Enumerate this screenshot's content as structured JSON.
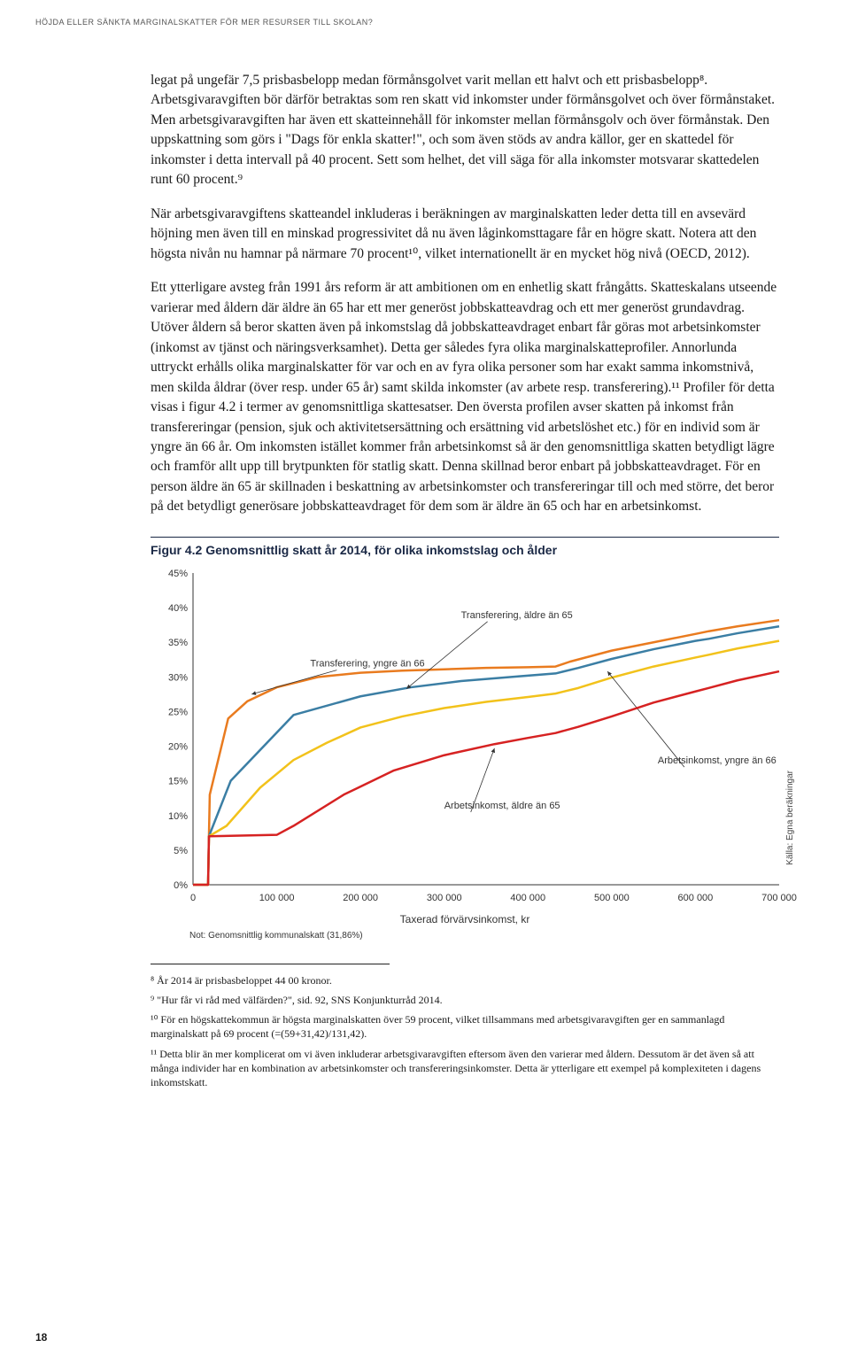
{
  "header": "HÖJDA ELLER SÄNKTA MARGINALSKATTER FÖR MER RESURSER TILL SKOLAN?",
  "p1": "legat på ungefär 7,5 prisbasbelopp medan förmånsgolvet varit mellan ett halvt och ett prisbasbelopp⁸. Arbetsgivaravgiften bör därför betraktas som ren skatt vid inkomster under förmånsgolvet och över förmånstaket. Men arbetsgivaravgiften har även ett skatteinnehåll för inkomster mellan förmånsgolv och över förmånstak. Den uppskattning som görs i \"Dags för enkla skatter!\", och som även stöds av andra källor, ger en skattedel för inkomster i detta intervall på 40 procent. Sett som helhet, det vill säga för alla inkomster motsvarar skattedelen runt 60 procent.⁹",
  "p2": "När arbetsgivaravgiftens skatteandel inkluderas i beräkningen av marginalskatten leder detta till en avsevärd höjning men även till en minskad progressivitet då nu även låginkomsttagare får en högre skatt. Notera att den högsta nivån nu hamnar på närmare 70 procent¹⁰, vilket internationellt är en mycket hög nivå (OECD, 2012).",
  "p3": "Ett ytterligare avsteg från 1991 års reform är att ambitionen om en enhetlig skatt frångåtts. Skatteskalans utseende varierar med åldern där äldre än 65 har ett mer generöst jobbskatteavdrag och ett mer generöst grundavdrag. Utöver åldern så beror skatten även på inkomstslag då jobbskatteavdraget enbart får göras mot arbetsinkomster (inkomst av tjänst och näringsverksamhet). Detta ger således fyra olika marginalskatteprofiler. Annorlunda uttryckt erhålls olika marginalskatter för var och en av fyra olika personer som har exakt samma inkomstnivå, men skilda åldrar (över resp. under 65 år) samt skilda inkomster (av arbete resp. transferering).¹¹ Profiler för detta visas i figur 4.2 i termer av genomsnittliga skattesatser. Den översta profilen avser skatten på inkomst från transfereringar (pension, sjuk och aktivitetsersättning och ersättning vid arbetslöshet etc.) för en individ som är yngre än 66 år. Om inkomsten istället kommer från arbetsinkomst så är den genomsnittliga skatten betydligt lägre och framför allt upp till brytpunkten för statlig skatt. Denna skillnad beror enbart på jobbskatteavdraget. För en person äldre än 65 är skillnaden i beskattning av arbetsinkomster och transfereringar till och med större, det beror på det betydligt generösare jobbskatteavdraget för dem som är äldre än 65 och har en arbetsinkomst.",
  "figTitle": "Figur 4.2 Genomsnittlig skatt år 2014, för olika inkomstslag och ålder",
  "chart": {
    "type": "line",
    "xmin": 0,
    "xmax": 700000,
    "ymin": 0,
    "ymax": 45,
    "ytick_step": 5,
    "yticks": [
      "0%",
      "5%",
      "10%",
      "15%",
      "20%",
      "25%",
      "30%",
      "35%",
      "40%",
      "45%"
    ],
    "xticks": [
      0,
      100000,
      200000,
      300000,
      400000,
      500000,
      600000,
      700000
    ],
    "xticklabels": [
      "0",
      "100 000",
      "200 000",
      "300 000",
      "400 000",
      "500 000",
      "600 000",
      "700 000"
    ],
    "xlabel": "Taxerad förvärvsinkomst, kr",
    "source": "Källa: Egna beräkningar",
    "note": "Not: Genomsnittlig kommunalskatt (31,86%)",
    "line_width": 2.5,
    "background_color": "#ffffff",
    "axis_color": "#333333",
    "series": [
      {
        "name": "Transferering, yngre än 66",
        "color": "#e97b1f",
        "label_xy": [
          140000,
          31.5
        ],
        "arrow_to": [
          70000,
          27.5
        ],
        "data": [
          [
            0,
            0
          ],
          [
            18000,
            0
          ],
          [
            19000,
            7
          ],
          [
            20000,
            13
          ],
          [
            42000,
            24
          ],
          [
            65000,
            26.5
          ],
          [
            100000,
            28.5
          ],
          [
            150000,
            30
          ],
          [
            200000,
            30.6
          ],
          [
            250000,
            30.9
          ],
          [
            300000,
            31.1
          ],
          [
            350000,
            31.3
          ],
          [
            400000,
            31.4
          ],
          [
            433000,
            31.5
          ],
          [
            450000,
            32.2
          ],
          [
            500000,
            33.8
          ],
          [
            550000,
            35
          ],
          [
            600000,
            36.2
          ],
          [
            616000,
            36.6
          ],
          [
            650000,
            37.3
          ],
          [
            700000,
            38.2
          ]
        ]
      },
      {
        "name": "Transferering, äldre än 65",
        "color": "#3b7ea4",
        "label_xy": [
          320000,
          38.5
        ],
        "arrow_to": [
          255000,
          28.3
        ],
        "data": [
          [
            0,
            0
          ],
          [
            18000,
            0
          ],
          [
            19000,
            7
          ],
          [
            45000,
            15
          ],
          [
            120000,
            24.5
          ],
          [
            200000,
            27.2
          ],
          [
            260000,
            28.5
          ],
          [
            320000,
            29.4
          ],
          [
            380000,
            30
          ],
          [
            433000,
            30.5
          ],
          [
            460000,
            31.3
          ],
          [
            500000,
            32.6
          ],
          [
            550000,
            34
          ],
          [
            600000,
            35.2
          ],
          [
            616000,
            35.5
          ],
          [
            650000,
            36.3
          ],
          [
            700000,
            37.3
          ]
        ]
      },
      {
        "name": "Arbetsinkomst, yngre än 66",
        "color": "#f2c21b",
        "label_xy": [
          555000,
          17.5
        ],
        "arrow_to": [
          495000,
          30.8
        ],
        "data": [
          [
            0,
            0
          ],
          [
            18000,
            0
          ],
          [
            19000,
            7
          ],
          [
            40000,
            8.5
          ],
          [
            80000,
            14
          ],
          [
            120000,
            18
          ],
          [
            160000,
            20.5
          ],
          [
            200000,
            22.7
          ],
          [
            250000,
            24.3
          ],
          [
            300000,
            25.5
          ],
          [
            350000,
            26.4
          ],
          [
            400000,
            27.1
          ],
          [
            433000,
            27.6
          ],
          [
            460000,
            28.4
          ],
          [
            500000,
            29.9
          ],
          [
            550000,
            31.5
          ],
          [
            600000,
            32.8
          ],
          [
            616000,
            33.2
          ],
          [
            650000,
            34.1
          ],
          [
            700000,
            35.2
          ]
        ]
      },
      {
        "name": "Arbetsinkomst, äldre än 65",
        "color": "#d62222",
        "label_xy": [
          300000,
          11
        ],
        "arrow_to": [
          360000,
          19.7
        ],
        "data": [
          [
            0,
            0
          ],
          [
            18000,
            0
          ],
          [
            19000,
            7
          ],
          [
            100000,
            7.2
          ],
          [
            120000,
            8.5
          ],
          [
            180000,
            13
          ],
          [
            240000,
            16.5
          ],
          [
            300000,
            18.7
          ],
          [
            360000,
            20.3
          ],
          [
            400000,
            21.2
          ],
          [
            433000,
            21.9
          ],
          [
            460000,
            22.8
          ],
          [
            500000,
            24.3
          ],
          [
            550000,
            26.3
          ],
          [
            600000,
            27.9
          ],
          [
            616000,
            28.4
          ],
          [
            650000,
            29.5
          ],
          [
            700000,
            30.8
          ]
        ]
      }
    ]
  },
  "fn8": "⁸ År 2014 är prisbasbeloppet 44 00 kronor.",
  "fn9": "⁹ \"Hur får vi råd med välfärden?\", sid. 92, SNS Konjunkturråd 2014.",
  "fn10": "¹⁰ För en högskattekommun är högsta marginalskatten över 59 procent, vilket tillsammans med arbetsgivaravgiften ger en sammanlagd marginalskatt på 69 procent (=(59+31,42)/131,42).",
  "fn11": "¹¹ Detta blir än mer komplicerat om vi även inkluderar arbetsgivaravgiften eftersom även den varierar med åldern. Dessutom är det även så att många individer har en kombination av arbetsinkomster och transfereringsinkomster. Detta är ytterligare ett exempel på komplexiteten i dagens inkomstskatt.",
  "pageno": "18"
}
